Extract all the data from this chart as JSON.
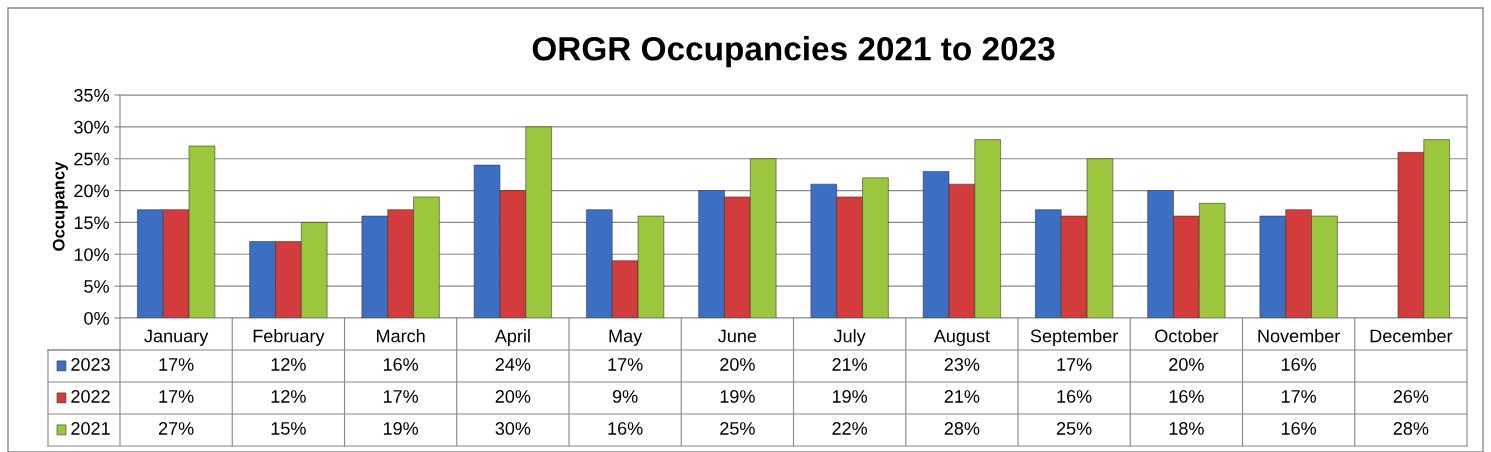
{
  "chart_data": {
    "type": "bar",
    "title": "ORGR Occupancies 2021 to 2023",
    "ylabel": "Occupancy",
    "categories": [
      "January",
      "February",
      "March",
      "April",
      "May",
      "June",
      "July",
      "August",
      "September",
      "October",
      "November",
      "December"
    ],
    "series": [
      {
        "name": "2023",
        "color": "#3c6fc4",
        "values": [
          17,
          12,
          16,
          24,
          17,
          20,
          21,
          23,
          17,
          20,
          16,
          null
        ],
        "value_labels": [
          "17%",
          "12%",
          "16%",
          "24%",
          "17%",
          "20%",
          "21%",
          "23%",
          "17%",
          "20%",
          "16%",
          null
        ]
      },
      {
        "name": "2022",
        "color": "#d23c3c",
        "values": [
          17,
          12,
          17,
          20,
          9,
          19,
          19,
          21,
          16,
          16,
          17,
          26
        ],
        "value_labels": [
          "17%",
          "12%",
          "17%",
          "20%",
          "9%",
          "19%",
          "19%",
          "21%",
          "16%",
          "16%",
          "17%",
          "26%"
        ]
      },
      {
        "name": "2021",
        "color": "#9dc63f",
        "values": [
          27,
          15,
          19,
          30,
          16,
          25,
          22,
          28,
          25,
          18,
          16,
          28
        ],
        "value_labels": [
          "27%",
          "15%",
          "19%",
          "30%",
          "16%",
          "25%",
          "22%",
          "28%",
          "25%",
          "18%",
          "16%",
          "28%"
        ]
      }
    ],
    "ylim": [
      0,
      35
    ],
    "yticks": [
      {
        "value": 0,
        "label": "0%"
      },
      {
        "value": 5,
        "label": "5%"
      },
      {
        "value": 10,
        "label": "10%"
      },
      {
        "value": 15,
        "label": "15%"
      },
      {
        "value": 20,
        "label": "20%"
      },
      {
        "value": 25,
        "label": "25%"
      },
      {
        "value": 30,
        "label": "30%"
      },
      {
        "value": 35,
        "label": "35%"
      }
    ],
    "grid": "y",
    "legend": "bottom"
  }
}
